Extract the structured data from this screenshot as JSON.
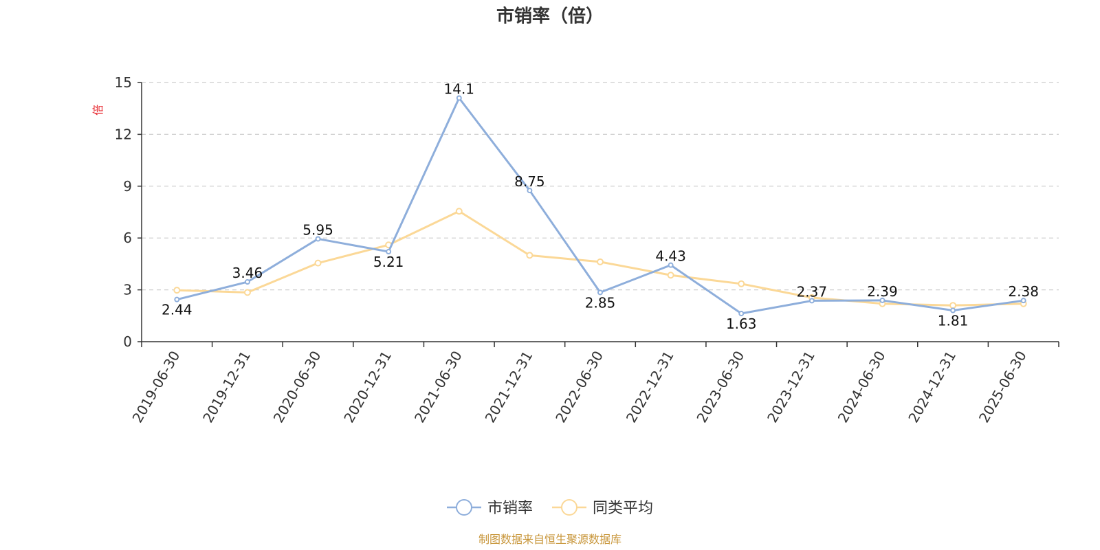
{
  "chart_data": {
    "type": "line",
    "title": "市销率（倍）",
    "ylabel": "倍",
    "ylim": [
      0,
      15
    ],
    "yticks": [
      0,
      3,
      6,
      9,
      12,
      15
    ],
    "grid": true,
    "legend_position": "bottom-center",
    "categories": [
      "2019-06-30",
      "2019-12-31",
      "2020-06-30",
      "2020-12-31",
      "2021-06-30",
      "2021-12-31",
      "2022-06-30",
      "2022-12-31",
      "2023-06-30",
      "2023-12-31",
      "2024-06-30",
      "2024-12-31",
      "2025-06-30"
    ],
    "series": [
      {
        "name": "市销率",
        "color": "#8eaedb",
        "values": [
          2.44,
          3.46,
          5.95,
          5.21,
          14.1,
          8.75,
          2.85,
          4.43,
          1.63,
          2.37,
          2.39,
          1.81,
          2.38
        ],
        "labels": [
          "2.44",
          "3.46",
          "5.95",
          "5.21",
          "14.1",
          "8.75",
          "2.85",
          "4.43",
          "1.63",
          "2.37",
          "2.39",
          "1.81",
          "2.38"
        ]
      },
      {
        "name": "同类平均",
        "color": "#fbd897",
        "values": [
          2.98,
          2.85,
          4.55,
          5.6,
          7.55,
          5.0,
          4.62,
          3.85,
          3.35,
          2.55,
          2.2,
          2.1,
          2.2
        ]
      }
    ]
  },
  "footer": {
    "source": "制图数据来自恒生聚源数据库"
  }
}
